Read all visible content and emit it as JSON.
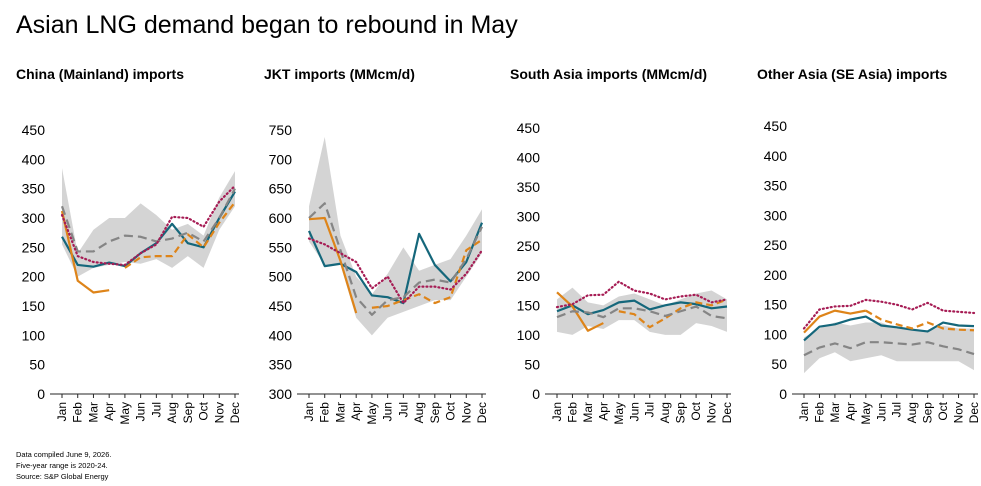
{
  "page": {
    "title": "Asian LNG demand began to rebound in May",
    "footnotes": [
      "Data compiled June 9, 2026.",
      "Five-year range is 2020-24.",
      "Source: S&P Global Energy"
    ]
  },
  "colors": {
    "range": "#d4d4d4",
    "teal": "#15677b",
    "orange": "#de8419",
    "gray_dash": "#858585",
    "maroon_dot": "#a61c54",
    "axis": "#262626"
  },
  "chart_data": [
    {
      "type": "line",
      "title": "China (Mainland) imports",
      "categories": [
        "Jan",
        "Feb",
        "Mar",
        "Apr",
        "May",
        "Jun",
        "Jul",
        "Aug",
        "Sep",
        "Oct",
        "Nov",
        "Dec"
      ],
      "ylim": [
        0,
        450
      ],
      "yticks": [
        0,
        50,
        100,
        150,
        200,
        250,
        300,
        350,
        400,
        450
      ],
      "range_band": {
        "low": [
          255,
          200,
          215,
          220,
          225,
          222,
          230,
          215,
          235,
          215,
          280,
          320
        ],
        "high": [
          385,
          240,
          280,
          300,
          300,
          325,
          305,
          280,
          290,
          270,
          335,
          380
        ]
      },
      "series": [
        {
          "style": "teal_solid",
          "values": [
            268,
            220,
            217,
            224,
            218,
            240,
            257,
            290,
            257,
            250,
            300,
            345
          ]
        },
        {
          "style": "orange_solid",
          "values": [
            312,
            193,
            173,
            177,
            null,
            null,
            null,
            null,
            null,
            null,
            null,
            null
          ]
        },
        {
          "style": "orange_dash",
          "values": [
            null,
            null,
            null,
            null,
            215,
            233,
            235,
            235,
            272,
            250,
            292,
            327
          ]
        },
        {
          "style": "gray_dash",
          "values": [
            320,
            243,
            243,
            260,
            270,
            268,
            260,
            265,
            275,
            260,
            300,
            350
          ]
        },
        {
          "style": "maroon_dot",
          "values": [
            305,
            235,
            225,
            222,
            220,
            240,
            255,
            302,
            300,
            285,
            328,
            355
          ]
        }
      ]
    },
    {
      "type": "line",
      "title": "JKT imports (MMcm/d)",
      "categories": [
        "Jan",
        "Feb",
        "Mar",
        "Apr",
        "May",
        "Jun",
        "Jul",
        "Aug",
        "Sep",
        "Oct",
        "Nov",
        "Dec"
      ],
      "ylim": [
        300,
        750
      ],
      "yticks": [
        300,
        350,
        400,
        450,
        500,
        550,
        600,
        650,
        700,
        750
      ],
      "range_band": {
        "low": [
          560,
          520,
          520,
          430,
          400,
          430,
          440,
          450,
          460,
          460,
          500,
          540
        ],
        "high": [
          620,
          738,
          570,
          500,
          470,
          505,
          550,
          510,
          520,
          530,
          570,
          615
        ]
      },
      "series": [
        {
          "style": "teal_solid",
          "values": [
            578,
            518,
            522,
            508,
            468,
            465,
            455,
            573,
            520,
            492,
            525,
            592
          ]
        },
        {
          "style": "orange_solid",
          "values": [
            598,
            600,
            527,
            438,
            null,
            null,
            null,
            null,
            null,
            null,
            null,
            null
          ]
        },
        {
          "style": "orange_dash",
          "values": [
            null,
            null,
            null,
            null,
            447,
            450,
            460,
            470,
            455,
            465,
            545,
            563
          ]
        },
        {
          "style": "gray_dash",
          "values": [
            600,
            625,
            545,
            465,
            435,
            460,
            465,
            490,
            495,
            490,
            530,
            585
          ]
        },
        {
          "style": "maroon_dot",
          "values": [
            565,
            555,
            540,
            525,
            480,
            500,
            455,
            483,
            483,
            478,
            505,
            545
          ]
        }
      ]
    },
    {
      "type": "line",
      "title": "South Asia imports (MMcm/d)",
      "categories": [
        "Jan",
        "Feb",
        "Mar",
        "Apr",
        "May",
        "Jun",
        "Jul",
        "Aug",
        "Sep",
        "Oct",
        "Nov",
        "Dec"
      ],
      "ylim": [
        0,
        450
      ],
      "yticks": [
        0,
        50,
        100,
        150,
        200,
        250,
        300,
        350,
        400,
        450
      ],
      "range_band": {
        "low": [
          105,
          100,
          115,
          110,
          125,
          125,
          105,
          100,
          100,
          120,
          115,
          105
        ],
        "high": [
          160,
          180,
          155,
          150,
          165,
          170,
          160,
          150,
          160,
          170,
          175,
          160
        ]
      },
      "series": [
        {
          "style": "teal_solid",
          "values": [
            140,
            150,
            135,
            142,
            155,
            158,
            143,
            150,
            155,
            152,
            145,
            148
          ]
        },
        {
          "style": "orange_solid",
          "values": [
            172,
            148,
            107,
            120,
            null,
            null,
            null,
            null,
            null,
            null,
            null,
            null
          ]
        },
        {
          "style": "orange_dash",
          "values": [
            null,
            null,
            null,
            null,
            140,
            135,
            113,
            128,
            145,
            155,
            150,
            160
          ]
        },
        {
          "style": "gray_dash",
          "values": [
            130,
            140,
            138,
            130,
            145,
            145,
            140,
            132,
            140,
            148,
            132,
            128
          ]
        },
        {
          "style": "maroon_dot",
          "values": [
            147,
            152,
            167,
            168,
            190,
            175,
            170,
            160,
            165,
            168,
            155,
            160
          ]
        }
      ]
    },
    {
      "type": "line",
      "title": "Other Asia (SE Asia) imports",
      "categories": [
        "Jan",
        "Feb",
        "Mar",
        "Apr",
        "May",
        "Jun",
        "Jul",
        "Aug",
        "Sep",
        "Oct",
        "Nov",
        "Dec"
      ],
      "ylim": [
        0,
        450
      ],
      "yticks": [
        0,
        50,
        100,
        150,
        200,
        250,
        300,
        350,
        400,
        450
      ],
      "range_band": {
        "low": [
          35,
          60,
          70,
          55,
          60,
          65,
          55,
          55,
          55,
          55,
          55,
          40
        ],
        "high": [
          95,
          110,
          120,
          115,
          120,
          120,
          110,
          110,
          105,
          115,
          110,
          110
        ]
      },
      "series": [
        {
          "style": "teal_solid",
          "values": [
            90,
            113,
            117,
            125,
            130,
            115,
            112,
            108,
            105,
            120,
            115,
            114
          ]
        },
        {
          "style": "orange_solid",
          "values": [
            103,
            130,
            140,
            135,
            140,
            null,
            null,
            null,
            null,
            null,
            null,
            null
          ]
        },
        {
          "style": "orange_dash",
          "values": [
            null,
            null,
            null,
            null,
            140,
            125,
            117,
            110,
            120,
            110,
            108,
            107
          ]
        },
        {
          "style": "gray_dash",
          "values": [
            65,
            78,
            85,
            77,
            87,
            87,
            85,
            83,
            87,
            80,
            75,
            67
          ]
        },
        {
          "style": "maroon_dot",
          "values": [
            110,
            142,
            147,
            148,
            158,
            155,
            150,
            142,
            153,
            140,
            138,
            136
          ]
        }
      ]
    }
  ]
}
